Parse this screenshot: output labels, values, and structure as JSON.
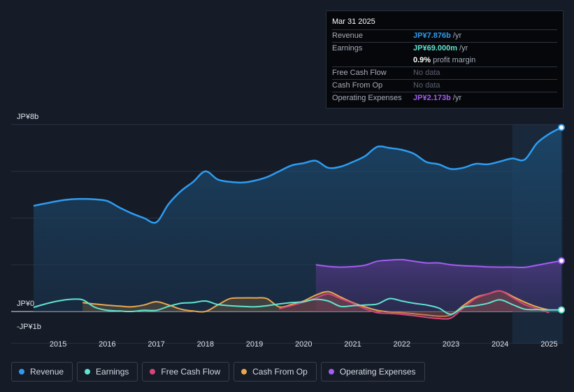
{
  "tooltip": {
    "date": "Mar 31 2025",
    "rows": [
      {
        "label": "Revenue",
        "value": "JP¥7.876b",
        "unit": " /yr"
      },
      {
        "label": "Earnings",
        "value": "JP¥69.000m",
        "unit": " /yr"
      },
      {
        "label": "",
        "value": "0.9%",
        "unit": " profit margin"
      },
      {
        "label": "Free Cash Flow",
        "value": "",
        "unit": "No data"
      },
      {
        "label": "Cash From Op",
        "value": "",
        "unit": "No data"
      },
      {
        "label": "Operating Expenses",
        "value": "JP¥2.173b",
        "unit": " /yr"
      }
    ]
  },
  "legend": [
    {
      "label": "Revenue",
      "color": "#2d9cf0"
    },
    {
      "label": "Earnings",
      "color": "#5fe5cf"
    },
    {
      "label": "Free Cash Flow",
      "color": "#d6457a"
    },
    {
      "label": "Cash From Op",
      "color": "#e9a74e"
    },
    {
      "label": "Operating Expenses",
      "color": "#a55cf2"
    }
  ],
  "chart_data": {
    "type": "area",
    "title": "",
    "xlabel": "",
    "ylabel": "",
    "ylim": [
      -1,
      8
    ],
    "y_tick_labels": [
      {
        "value": 8,
        "label": "JP¥8b"
      },
      {
        "value": 0,
        "label": "JP¥0"
      },
      {
        "value": -1,
        "label": "-JP¥1b"
      }
    ],
    "x_ticks": [
      {
        "value": 2015,
        "label": "2015"
      },
      {
        "value": 2016,
        "label": "2016"
      },
      {
        "value": 2017,
        "label": "2017"
      },
      {
        "value": 2018,
        "label": "2018"
      },
      {
        "value": 2019,
        "label": "2019"
      },
      {
        "value": 2020,
        "label": "2020"
      },
      {
        "value": 2021,
        "label": "2021"
      },
      {
        "value": 2022,
        "label": "2022"
      },
      {
        "value": 2023,
        "label": "2023"
      },
      {
        "value": 2024,
        "label": "2024"
      },
      {
        "value": 2025,
        "label": "2025"
      }
    ],
    "xlim": [
      2014.5,
      2025.25
    ],
    "highlight_from": 2024.25,
    "series": [
      {
        "name": "Revenue",
        "color": "#2d9cf0",
        "fill": true,
        "points": [
          [
            2014.5,
            4.52
          ],
          [
            2014.75,
            4.63
          ],
          [
            2015.0,
            4.73
          ],
          [
            2015.25,
            4.8
          ],
          [
            2015.5,
            4.82
          ],
          [
            2015.75,
            4.8
          ],
          [
            2016.0,
            4.73
          ],
          [
            2016.25,
            4.45
          ],
          [
            2016.5,
            4.2
          ],
          [
            2016.75,
            4.0
          ],
          [
            2017.0,
            3.82
          ],
          [
            2017.25,
            4.6
          ],
          [
            2017.5,
            5.15
          ],
          [
            2017.75,
            5.55
          ],
          [
            2018.0,
            6.0
          ],
          [
            2018.25,
            5.65
          ],
          [
            2018.5,
            5.55
          ],
          [
            2018.75,
            5.52
          ],
          [
            2019.0,
            5.6
          ],
          [
            2019.25,
            5.75
          ],
          [
            2019.5,
            6.0
          ],
          [
            2019.75,
            6.25
          ],
          [
            2020.0,
            6.35
          ],
          [
            2020.25,
            6.45
          ],
          [
            2020.5,
            6.15
          ],
          [
            2020.75,
            6.2
          ],
          [
            2021.0,
            6.4
          ],
          [
            2021.25,
            6.65
          ],
          [
            2021.5,
            7.05
          ],
          [
            2021.75,
            7.0
          ],
          [
            2022.0,
            6.92
          ],
          [
            2022.25,
            6.75
          ],
          [
            2022.5,
            6.4
          ],
          [
            2022.75,
            6.3
          ],
          [
            2023.0,
            6.1
          ],
          [
            2023.25,
            6.15
          ],
          [
            2023.5,
            6.32
          ],
          [
            2023.75,
            6.3
          ],
          [
            2024.0,
            6.42
          ],
          [
            2024.25,
            6.55
          ],
          [
            2024.5,
            6.5
          ],
          [
            2024.75,
            7.2
          ],
          [
            2025.0,
            7.6
          ],
          [
            2025.25,
            7.876
          ]
        ]
      },
      {
        "name": "Operating Expenses",
        "color": "#a55cf2",
        "fill": true,
        "points": [
          [
            2020.25,
            2.0
          ],
          [
            2020.5,
            1.93
          ],
          [
            2020.75,
            1.9
          ],
          [
            2021.0,
            1.92
          ],
          [
            2021.25,
            1.98
          ],
          [
            2021.5,
            2.15
          ],
          [
            2021.75,
            2.2
          ],
          [
            2022.0,
            2.22
          ],
          [
            2022.25,
            2.15
          ],
          [
            2022.5,
            2.08
          ],
          [
            2022.75,
            2.08
          ],
          [
            2023.0,
            2.0
          ],
          [
            2023.25,
            1.96
          ],
          [
            2023.5,
            1.94
          ],
          [
            2023.75,
            1.91
          ],
          [
            2024.0,
            1.9
          ],
          [
            2024.25,
            1.9
          ],
          [
            2024.5,
            1.89
          ],
          [
            2024.75,
            1.98
          ],
          [
            2025.0,
            2.08
          ],
          [
            2025.25,
            2.173
          ]
        ]
      },
      {
        "name": "Cash From Op",
        "color": "#e9a74e",
        "fill": true,
        "points": [
          [
            2015.5,
            0.38
          ],
          [
            2015.75,
            0.32
          ],
          [
            2016.0,
            0.27
          ],
          [
            2016.25,
            0.23
          ],
          [
            2016.5,
            0.2
          ],
          [
            2016.75,
            0.28
          ],
          [
            2017.0,
            0.42
          ],
          [
            2017.25,
            0.28
          ],
          [
            2017.5,
            0.1
          ],
          [
            2017.75,
            0.02
          ],
          [
            2018.0,
            0.0
          ],
          [
            2018.25,
            0.28
          ],
          [
            2018.5,
            0.55
          ],
          [
            2018.75,
            0.58
          ],
          [
            2019.0,
            0.58
          ],
          [
            2019.25,
            0.55
          ],
          [
            2019.5,
            0.2
          ],
          [
            2019.75,
            0.3
          ],
          [
            2020.0,
            0.45
          ],
          [
            2020.25,
            0.7
          ],
          [
            2020.5,
            0.85
          ],
          [
            2020.75,
            0.62
          ],
          [
            2021.0,
            0.38
          ],
          [
            2021.25,
            0.2
          ],
          [
            2021.5,
            0.05
          ],
          [
            2021.75,
            -0.02
          ],
          [
            2022.0,
            -0.05
          ],
          [
            2022.25,
            -0.1
          ],
          [
            2022.5,
            -0.15
          ],
          [
            2022.75,
            -0.2
          ],
          [
            2023.0,
            -0.15
          ],
          [
            2023.25,
            0.25
          ],
          [
            2023.5,
            0.6
          ],
          [
            2023.75,
            0.75
          ],
          [
            2024.0,
            0.88
          ],
          [
            2024.25,
            0.65
          ],
          [
            2024.5,
            0.4
          ],
          [
            2024.75,
            0.2
          ],
          [
            2025.0,
            0.06
          ]
        ]
      },
      {
        "name": "Free Cash Flow",
        "color": "#d6457a",
        "fill": true,
        "points": [
          [
            2019.5,
            0.12
          ],
          [
            2019.75,
            0.25
          ],
          [
            2020.0,
            0.4
          ],
          [
            2020.25,
            0.58
          ],
          [
            2020.5,
            0.75
          ],
          [
            2020.75,
            0.55
          ],
          [
            2021.0,
            0.35
          ],
          [
            2021.25,
            0.12
          ],
          [
            2021.5,
            -0.05
          ],
          [
            2021.75,
            -0.08
          ],
          [
            2022.0,
            -0.12
          ],
          [
            2022.25,
            -0.18
          ],
          [
            2022.5,
            -0.25
          ],
          [
            2022.75,
            -0.3
          ],
          [
            2023.0,
            -0.28
          ],
          [
            2023.25,
            0.15
          ],
          [
            2023.5,
            0.55
          ],
          [
            2023.75,
            0.75
          ],
          [
            2024.0,
            0.88
          ],
          [
            2024.25,
            0.6
          ],
          [
            2024.5,
            0.3
          ],
          [
            2024.75,
            0.12
          ],
          [
            2025.0,
            -0.05
          ]
        ]
      },
      {
        "name": "Earnings",
        "color": "#5fe5cf",
        "fill": false,
        "points": [
          [
            2014.5,
            0.18
          ],
          [
            2014.75,
            0.33
          ],
          [
            2015.0,
            0.45
          ],
          [
            2015.25,
            0.52
          ],
          [
            2015.5,
            0.5
          ],
          [
            2015.75,
            0.18
          ],
          [
            2016.0,
            0.05
          ],
          [
            2016.25,
            0.02
          ],
          [
            2016.5,
            0.0
          ],
          [
            2016.75,
            0.05
          ],
          [
            2017.0,
            0.05
          ],
          [
            2017.25,
            0.22
          ],
          [
            2017.5,
            0.35
          ],
          [
            2017.75,
            0.38
          ],
          [
            2018.0,
            0.45
          ],
          [
            2018.25,
            0.3
          ],
          [
            2018.5,
            0.25
          ],
          [
            2018.75,
            0.22
          ],
          [
            2019.0,
            0.2
          ],
          [
            2019.25,
            0.25
          ],
          [
            2019.5,
            0.32
          ],
          [
            2019.75,
            0.38
          ],
          [
            2020.0,
            0.42
          ],
          [
            2020.25,
            0.52
          ],
          [
            2020.5,
            0.45
          ],
          [
            2020.75,
            0.22
          ],
          [
            2021.0,
            0.25
          ],
          [
            2021.25,
            0.28
          ],
          [
            2021.5,
            0.32
          ],
          [
            2021.75,
            0.55
          ],
          [
            2022.0,
            0.45
          ],
          [
            2022.25,
            0.35
          ],
          [
            2022.5,
            0.28
          ],
          [
            2022.75,
            0.15
          ],
          [
            2023.0,
            -0.12
          ],
          [
            2023.25,
            0.18
          ],
          [
            2023.5,
            0.25
          ],
          [
            2023.75,
            0.35
          ],
          [
            2024.0,
            0.5
          ],
          [
            2024.25,
            0.3
          ],
          [
            2024.5,
            0.1
          ],
          [
            2024.75,
            0.08
          ],
          [
            2025.0,
            0.07
          ],
          [
            2025.25,
            0.069
          ]
        ]
      }
    ]
  }
}
